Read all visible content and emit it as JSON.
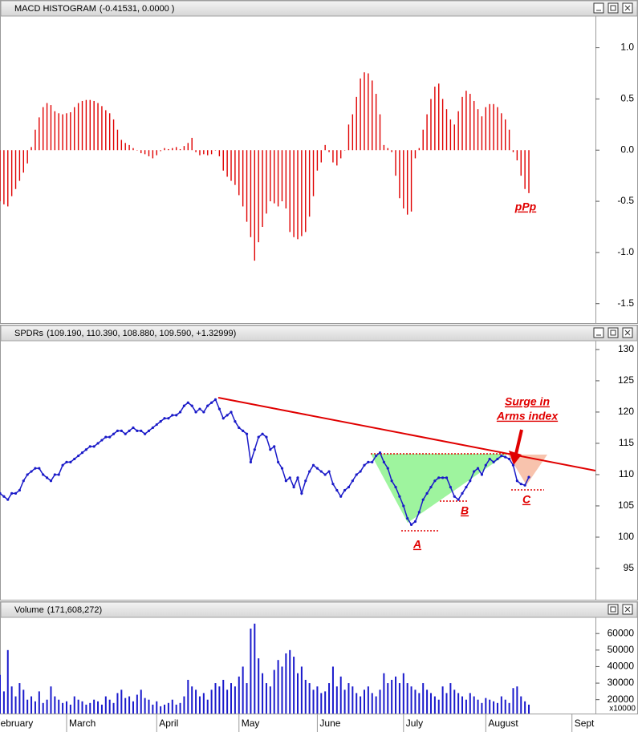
{
  "chart_data": [
    {
      "type": "bar",
      "title": "MACD HISTOGRAM",
      "readout": "(-0.41531, 0.0000 )",
      "color": "#e00000",
      "x": [
        2,
        3,
        4,
        5,
        6,
        7,
        8,
        9,
        10,
        11,
        12,
        13,
        14,
        15,
        16,
        17,
        18,
        19,
        20,
        21,
        22,
        23,
        24,
        25,
        26,
        27,
        28,
        29,
        30,
        31,
        32,
        33,
        34,
        35,
        36,
        37,
        38,
        39,
        40,
        41,
        42,
        43,
        44,
        45,
        46,
        47,
        48,
        49,
        50,
        51,
        52,
        53,
        54,
        55,
        56,
        57,
        58,
        59,
        60,
        61,
        62,
        63,
        64,
        65,
        66,
        67,
        68,
        69,
        70,
        71,
        72,
        73,
        74,
        75,
        76,
        77,
        78,
        79,
        80,
        81,
        82,
        83,
        84,
        85,
        86,
        87,
        88,
        89,
        90,
        91,
        92,
        93,
        94,
        95,
        96,
        97,
        98,
        99,
        100,
        101,
        102,
        103,
        104,
        105,
        106,
        107,
        108,
        109,
        110,
        111,
        112,
        113,
        114,
        115,
        116,
        117,
        118,
        119,
        120,
        121,
        122,
        123,
        124,
        125,
        126,
        127,
        128,
        129,
        130,
        131,
        132,
        133,
        134,
        135,
        136,
        137
      ],
      "values": [
        -0.5,
        -0.53,
        -0.55,
        -0.45,
        -0.38,
        -0.3,
        -0.22,
        -0.13,
        0.03,
        0.2,
        0.32,
        0.42,
        0.46,
        0.44,
        0.38,
        0.36,
        0.35,
        0.36,
        0.37,
        0.42,
        0.46,
        0.48,
        0.49,
        0.49,
        0.48,
        0.46,
        0.43,
        0.39,
        0.36,
        0.3,
        0.2,
        0.1,
        0.07,
        0.05,
        0.02,
        0,
        -0.03,
        -0.04,
        -0.06,
        -0.08,
        -0.05,
        -0.01,
        0.02,
        0.01,
        0.02,
        0.03,
        0.01,
        0.04,
        0.07,
        0.12,
        -0.02,
        -0.05,
        -0.04,
        -0.05,
        -0.04,
        0,
        -0.06,
        -0.2,
        -0.26,
        -0.3,
        -0.34,
        -0.44,
        -0.55,
        -0.7,
        -0.85,
        -1.08,
        -0.9,
        -0.75,
        -0.62,
        -0.5,
        -0.52,
        -0.55,
        -0.5,
        -0.57,
        -0.8,
        -0.85,
        -0.87,
        -0.84,
        -0.8,
        -0.65,
        -0.45,
        -0.2,
        -0.12,
        0.05,
        -0.02,
        -0.12,
        -0.15,
        -0.08,
        0,
        0.25,
        0.35,
        0.52,
        0.7,
        0.76,
        0.75,
        0.68,
        0.55,
        0.35,
        0.05,
        0.02,
        -0.02,
        -0.25,
        -0.47,
        -0.57,
        -0.63,
        -0.6,
        -0.08,
        0.02,
        0.2,
        0.35,
        0.5,
        0.62,
        0.65,
        0.5,
        0.4,
        0.3,
        0.25,
        0.38,
        0.52,
        0.58,
        0.55,
        0.48,
        0.4,
        0.33,
        0.42,
        0.45,
        0.45,
        0.42,
        0.36,
        0.3,
        0.2,
        -0.02,
        -0.1,
        -0.25,
        -0.38,
        -0.42
      ],
      "xlim": [
        2,
        154
      ],
      "ylim": [
        -1.69,
        1.31
      ],
      "yticks": [
        {
          "value": 1,
          "label": "1.0"
        },
        {
          "value": 0.5,
          "label": "0.5"
        },
        {
          "value": 0,
          "label": "0.0"
        },
        {
          "value": -0.5,
          "label": "-0.5"
        },
        {
          "value": -1,
          "label": "-1.0"
        },
        {
          "value": -1.5,
          "label": "-1.5"
        }
      ],
      "annotations": [
        "pPp"
      ]
    },
    {
      "type": "line",
      "title": "SPDRs",
      "readout": "(109.190, 110.390, 108.880, 109.590, +1.32999)",
      "color": "#1a1ac8",
      "x": [
        2,
        3,
        4,
        5,
        6,
        7,
        8,
        9,
        10,
        11,
        12,
        13,
        14,
        15,
        16,
        17,
        18,
        19,
        20,
        21,
        22,
        23,
        24,
        25,
        26,
        27,
        28,
        29,
        30,
        31,
        32,
        33,
        34,
        35,
        36,
        37,
        38,
        39,
        40,
        41,
        42,
        43,
        44,
        45,
        46,
        47,
        48,
        49,
        50,
        51,
        52,
        53,
        54,
        55,
        56,
        57,
        58,
        59,
        60,
        61,
        62,
        63,
        64,
        65,
        66,
        67,
        68,
        69,
        70,
        71,
        72,
        73,
        74,
        75,
        76,
        77,
        78,
        79,
        80,
        81,
        82,
        83,
        84,
        85,
        86,
        87,
        88,
        89,
        90,
        91,
        92,
        93,
        94,
        95,
        96,
        97,
        98,
        99,
        100,
        101,
        102,
        103,
        104,
        105,
        106,
        107,
        108,
        109,
        110,
        111,
        112,
        113,
        114,
        115,
        116,
        117,
        118,
        119,
        120,
        121,
        122,
        123,
        124,
        125,
        126,
        127,
        128,
        129,
        130,
        131,
        132,
        133,
        134,
        135,
        136,
        137
      ],
      "values": [
        107,
        106.5,
        106,
        107,
        107,
        107.5,
        109,
        110,
        110.5,
        111,
        111,
        110,
        109.5,
        109,
        110,
        110,
        111.5,
        112,
        112,
        112.5,
        113,
        113.5,
        114,
        114.5,
        114.5,
        115,
        115.5,
        116,
        116,
        116.5,
        117,
        117,
        116.5,
        117,
        117.5,
        117,
        117,
        116.5,
        117,
        117.5,
        118,
        118.5,
        119,
        119,
        119.5,
        119.5,
        120,
        121,
        121.5,
        121,
        120,
        120.5,
        120,
        121,
        121.5,
        122,
        120.5,
        119,
        119.5,
        120,
        118.5,
        117.5,
        117,
        116.5,
        112,
        114,
        116,
        116.5,
        116,
        114,
        114.5,
        112,
        111,
        109,
        109.5,
        108,
        109.5,
        107,
        109,
        110.5,
        111.5,
        111,
        110.5,
        110,
        110.5,
        108.5,
        107.5,
        106.5,
        107.5,
        108,
        109,
        110,
        110.5,
        111.5,
        112,
        112,
        113,
        113.5,
        112,
        111,
        109,
        108,
        106.5,
        105,
        103,
        102,
        102.5,
        104,
        106,
        107,
        108,
        109,
        109.5,
        109.5,
        109.5,
        108,
        106.5,
        106,
        107,
        108,
        109,
        110.5,
        111,
        110,
        111.5,
        112.5,
        112,
        112.5,
        113,
        112.8,
        112.5,
        111.5,
        109,
        108.5,
        108.3,
        109.6
      ],
      "xlim": [
        2,
        154
      ],
      "ylim": [
        90,
        131.4
      ],
      "yticks": [
        130,
        125,
        120,
        115,
        110,
        105,
        100,
        95
      ],
      "annotations": [
        "Surge in",
        "Arms index",
        "A",
        "B",
        "C"
      ]
    },
    {
      "type": "volume",
      "title": "Volume",
      "readout": "(171,608,272)",
      "color": "#1a1acc",
      "unit": "x10000",
      "x": [
        2,
        3,
        4,
        5,
        6,
        7,
        8,
        9,
        10,
        11,
        12,
        13,
        14,
        15,
        16,
        17,
        18,
        19,
        20,
        21,
        22,
        23,
        24,
        25,
        26,
        27,
        28,
        29,
        30,
        31,
        32,
        33,
        34,
        35,
        36,
        37,
        38,
        39,
        40,
        41,
        42,
        43,
        44,
        45,
        46,
        47,
        48,
        49,
        50,
        51,
        52,
        53,
        54,
        55,
        56,
        57,
        58,
        59,
        60,
        61,
        62,
        63,
        64,
        65,
        66,
        67,
        68,
        69,
        70,
        71,
        72,
        73,
        74,
        75,
        76,
        77,
        78,
        79,
        80,
        81,
        82,
        83,
        84,
        85,
        86,
        87,
        88,
        89,
        90,
        91,
        92,
        93,
        94,
        95,
        96,
        97,
        98,
        99,
        100,
        101,
        102,
        103,
        104,
        105,
        106,
        107,
        108,
        109,
        110,
        111,
        112,
        113,
        114,
        115,
        116,
        117,
        118,
        119,
        120,
        121,
        122,
        123,
        124,
        125,
        126,
        127,
        128,
        129,
        130,
        131,
        132,
        133,
        134,
        135,
        136,
        137
      ],
      "values": [
        35000,
        25000,
        50000,
        28000,
        22000,
        30000,
        26000,
        20000,
        22000,
        19000,
        25000,
        18000,
        20000,
        28000,
        22000,
        20000,
        18000,
        19000,
        17000,
        22000,
        20000,
        19000,
        17000,
        18000,
        20000,
        19000,
        17000,
        22000,
        20000,
        18000,
        24000,
        26000,
        21000,
        22000,
        19000,
        23000,
        26000,
        21000,
        20000,
        17000,
        19000,
        16000,
        17000,
        18000,
        20000,
        17000,
        18000,
        22000,
        32000,
        28000,
        26000,
        22000,
        24000,
        20000,
        26000,
        30000,
        28000,
        32000,
        26000,
        30000,
        28000,
        34000,
        40000,
        30000,
        63000,
        66000,
        45000,
        36000,
        30000,
        28000,
        38000,
        44000,
        40000,
        48000,
        50000,
        46000,
        36000,
        40000,
        32000,
        30000,
        26000,
        28000,
        24000,
        25000,
        30000,
        40000,
        28000,
        34000,
        26000,
        30000,
        28000,
        24000,
        22000,
        26000,
        28000,
        24000,
        22000,
        26000,
        36000,
        30000,
        32000,
        34000,
        30000,
        36000,
        30000,
        28000,
        26000,
        24000,
        30000,
        26000,
        24000,
        22000,
        20000,
        28000,
        24000,
        30000,
        26000,
        24000,
        22000,
        20000,
        24000,
        22000,
        20000,
        18000,
        21000,
        20000,
        19000,
        18000,
        22000,
        20000,
        18000,
        27000,
        28000,
        22000,
        19000,
        17000
      ],
      "xlim": [
        2,
        154
      ],
      "ylim": [
        11600,
        69800
      ],
      "yticks": [
        60000,
        50000,
        40000,
        30000,
        20000
      ],
      "xticks": [
        {
          "value": 0,
          "label": "February"
        },
        {
          "value": 19,
          "label": "March"
        },
        {
          "value": 42,
          "label": "April"
        },
        {
          "value": 63,
          "label": "May"
        },
        {
          "value": 83,
          "label": "June"
        },
        {
          "value": 105,
          "label": "July"
        },
        {
          "value": 126,
          "label": "August"
        },
        {
          "value": 148,
          "label": "Sept"
        }
      ]
    }
  ]
}
